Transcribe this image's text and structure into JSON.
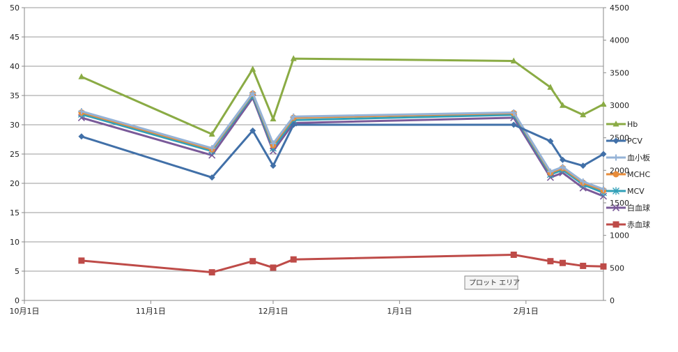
{
  "chart_data": {
    "type": "line",
    "title": "",
    "xlabel": "",
    "ylabel_left": "",
    "ylabel_right": "",
    "x_ticks": [
      {
        "date": "2000-10-01",
        "label": "10月1日"
      },
      {
        "date": "2000-11-01",
        "label": "11月1日"
      },
      {
        "date": "2000-12-01",
        "label": "12月1日"
      },
      {
        "date": "2001-01-01",
        "label": "1月1日"
      },
      {
        "date": "2001-02-01",
        "label": "2月1日"
      }
    ],
    "x_range": [
      "2000-10-01",
      "2001-02-20"
    ],
    "y_left": {
      "min": 0,
      "max": 50,
      "ticks": [
        "0",
        "5",
        "10",
        "15",
        "20",
        "25",
        "30",
        "35",
        "40",
        "45",
        "50"
      ]
    },
    "y_right": {
      "min": 0,
      "max": 4500,
      "ticks": [
        "0",
        "500",
        "1000",
        "1500",
        "2000",
        "2500",
        "3000",
        "3500",
        "4000",
        "4500"
      ]
    },
    "grid": "horizontal",
    "legend_position": "right",
    "series": [
      {
        "name": "Hb",
        "axis": "left",
        "color": "#8aab44",
        "marker": "triangle",
        "x": [
          "2000-10-15",
          "2000-11-16",
          "2000-11-26",
          "2000-12-01",
          "2000-12-06",
          "2001-01-29",
          "2001-02-07",
          "2001-02-10",
          "2001-02-15",
          "2001-02-20"
        ],
        "values": [
          38.2,
          28.4,
          39.5,
          31.0,
          41.3,
          40.9,
          36.4,
          33.3,
          31.7,
          33.5
        ]
      },
      {
        "name": "PCV",
        "axis": "left",
        "color": "#4170a8",
        "marker": "diamond",
        "x": [
          "2000-10-15",
          "2000-11-16",
          "2000-11-26",
          "2000-12-01",
          "2000-12-06",
          "2001-01-29",
          "2001-02-07",
          "2001-02-10",
          "2001-02-15",
          "2001-02-20"
        ],
        "values": [
          28.0,
          21.0,
          29.0,
          23.0,
          30.0,
          30.0,
          27.2,
          24.0,
          23.0,
          25.0
        ]
      },
      {
        "name": "血小板",
        "axis": "left",
        "color": "#95b3d7",
        "marker": "plus",
        "x": [
          "2000-10-15",
          "2000-11-16",
          "2000-11-26",
          "2000-12-01",
          "2000-12-06",
          "2001-01-29",
          "2001-02-07",
          "2001-02-10",
          "2001-02-15",
          "2001-02-20"
        ],
        "values": [
          32.3,
          26.0,
          35.4,
          26.8,
          31.4,
          32.1,
          22.0,
          22.8,
          20.3,
          19.0
        ]
      },
      {
        "name": "MCHC",
        "axis": "left",
        "color": "#e88c3a",
        "marker": "circle",
        "x": [
          "2000-10-15",
          "2000-11-16",
          "2000-11-26",
          "2000-12-01",
          "2000-12-06",
          "2001-01-29",
          "2001-02-07",
          "2001-02-10",
          "2001-02-15",
          "2001-02-20"
        ],
        "values": [
          32.1,
          25.8,
          35.3,
          26.5,
          31.2,
          32.0,
          21.8,
          22.6,
          20.1,
          18.8
        ]
      },
      {
        "name": "MCV",
        "axis": "left",
        "color": "#31a0b8",
        "marker": "asterisk",
        "x": [
          "2000-10-15",
          "2000-11-16",
          "2000-11-26",
          "2000-12-01",
          "2000-12-06",
          "2001-01-29",
          "2001-02-07",
          "2001-02-10",
          "2001-02-15",
          "2001-02-20"
        ],
        "values": [
          31.8,
          25.5,
          35.0,
          26.0,
          30.8,
          31.7,
          21.5,
          22.3,
          19.8,
          18.4
        ]
      },
      {
        "name": "白血球",
        "axis": "left",
        "color": "#7a5a99",
        "marker": "x",
        "x": [
          "2000-10-15",
          "2000-11-16",
          "2000-11-26",
          "2000-12-01",
          "2000-12-06",
          "2001-01-29",
          "2001-02-07",
          "2001-02-10",
          "2001-02-15",
          "2001-02-20"
        ],
        "values": [
          31.2,
          24.8,
          34.6,
          25.5,
          30.3,
          31.2,
          21.0,
          21.8,
          19.2,
          17.8
        ]
      },
      {
        "name": "赤血球",
        "axis": "left",
        "color": "#be4b48",
        "marker": "square",
        "x": [
          "2000-10-15",
          "2000-11-16",
          "2000-11-26",
          "2000-12-01",
          "2000-12-06",
          "2001-01-29",
          "2001-02-07",
          "2001-02-10",
          "2001-02-15",
          "2001-02-20"
        ],
        "values": [
          6.8,
          4.8,
          6.7,
          5.6,
          7.0,
          7.8,
          6.7,
          6.4,
          5.9,
          5.8
        ]
      }
    ]
  },
  "tooltip": {
    "label": "プロット エリア"
  }
}
